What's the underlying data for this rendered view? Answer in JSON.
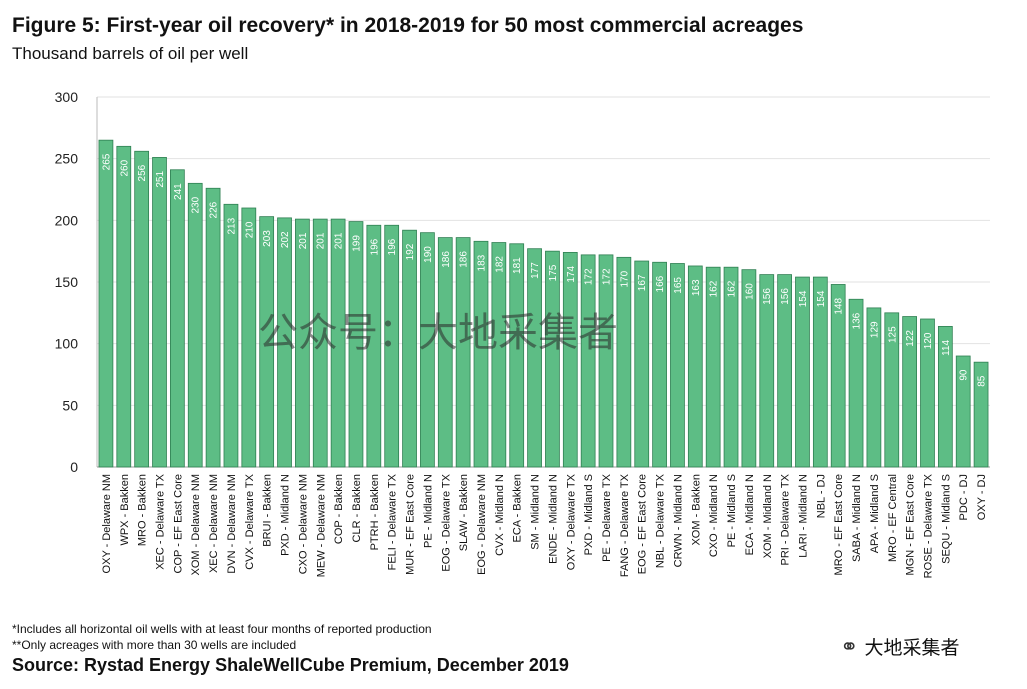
{
  "header": {
    "title": "Figure 5: First-year oil recovery* in 2018-2019 for 50 most commercial acreages",
    "subtitle": "Thousand barrels of oil per well"
  },
  "watermark": "公众号：大地采集者",
  "notes": [
    "*Includes all horizontal oil wells with at least four months of reported production",
    "**Only acreages with more than 30 wells are included"
  ],
  "source": "Source: Rystad Energy ShaleWellCube Premium, December 2019",
  "brand": {
    "icon": "wechat-icon",
    "text": "大地采集者"
  },
  "colors": {
    "bar": "#5dbd85",
    "bar_edge": "#2f7f52",
    "grid": "#e2e2e2"
  },
  "chart_data": {
    "type": "bar",
    "title": "Figure 5: First-year oil recovery* in 2018-2019 for 50 most commercial acreages",
    "ylabel": "Thousand barrels of oil per well",
    "ylim": [
      0,
      300
    ],
    "yticks": [
      0,
      50,
      100,
      150,
      200,
      250,
      300
    ],
    "grid": true,
    "categories": [
      "OXY - Delaware NM",
      "WPX - Bakken",
      "MRO - Bakken",
      "XEC - Delaware TX",
      "COP - EF East Core",
      "XOM - Delaware NM",
      "XEC - Delaware NM",
      "DVN - Delaware NM",
      "CVX - Delaware TX",
      "BRUI - Bakken",
      "PXD - Midland N",
      "CXO - Delaware NM",
      "MEW - Delaware NM",
      "COP - Bakken",
      "CLR - Bakken",
      "PTRH - Bakken",
      "FELI - Delaware TX",
      "MUR - EF East Core",
      "PE - Midland N",
      "EOG - Delaware TX",
      "SLAW - Bakken",
      "EOG - Delaware NM",
      "CVX - Midland N",
      "ECA - Bakken",
      "SM - Midland N",
      "ENDE - Midland N",
      "OXY - Delaware TX",
      "PXD - Midland S",
      "PE - Delaware TX",
      "FANG - Delaware TX",
      "EOG - EF East Core",
      "NBL - Delaware TX",
      "CRWN - Midland N",
      "XOM - Bakken",
      "CXO - Midland N",
      "PE - Midland S",
      "ECA - Midland N",
      "XOM - Midland N",
      "PRI - Delaware TX",
      "LARI - Midland N",
      "NBL - DJ",
      "MRO - EF East Core",
      "SABA - Midland N",
      "APA - Midland S",
      "MRO - EF Central",
      "MGN - EF East Core",
      "ROSE - Delaware TX",
      "SEQU - Midland S",
      "PDC - DJ",
      "OXY - DJ"
    ],
    "values": [
      265,
      260,
      256,
      251,
      241,
      230,
      226,
      213,
      210,
      203,
      202,
      201,
      201,
      201,
      199,
      196,
      196,
      192,
      190,
      186,
      186,
      183,
      182,
      181,
      177,
      175,
      174,
      172,
      172,
      170,
      167,
      166,
      165,
      163,
      162,
      162,
      160,
      156,
      156,
      154,
      154,
      148,
      136,
      129,
      125,
      122,
      120,
      114,
      90,
      85
    ]
  }
}
